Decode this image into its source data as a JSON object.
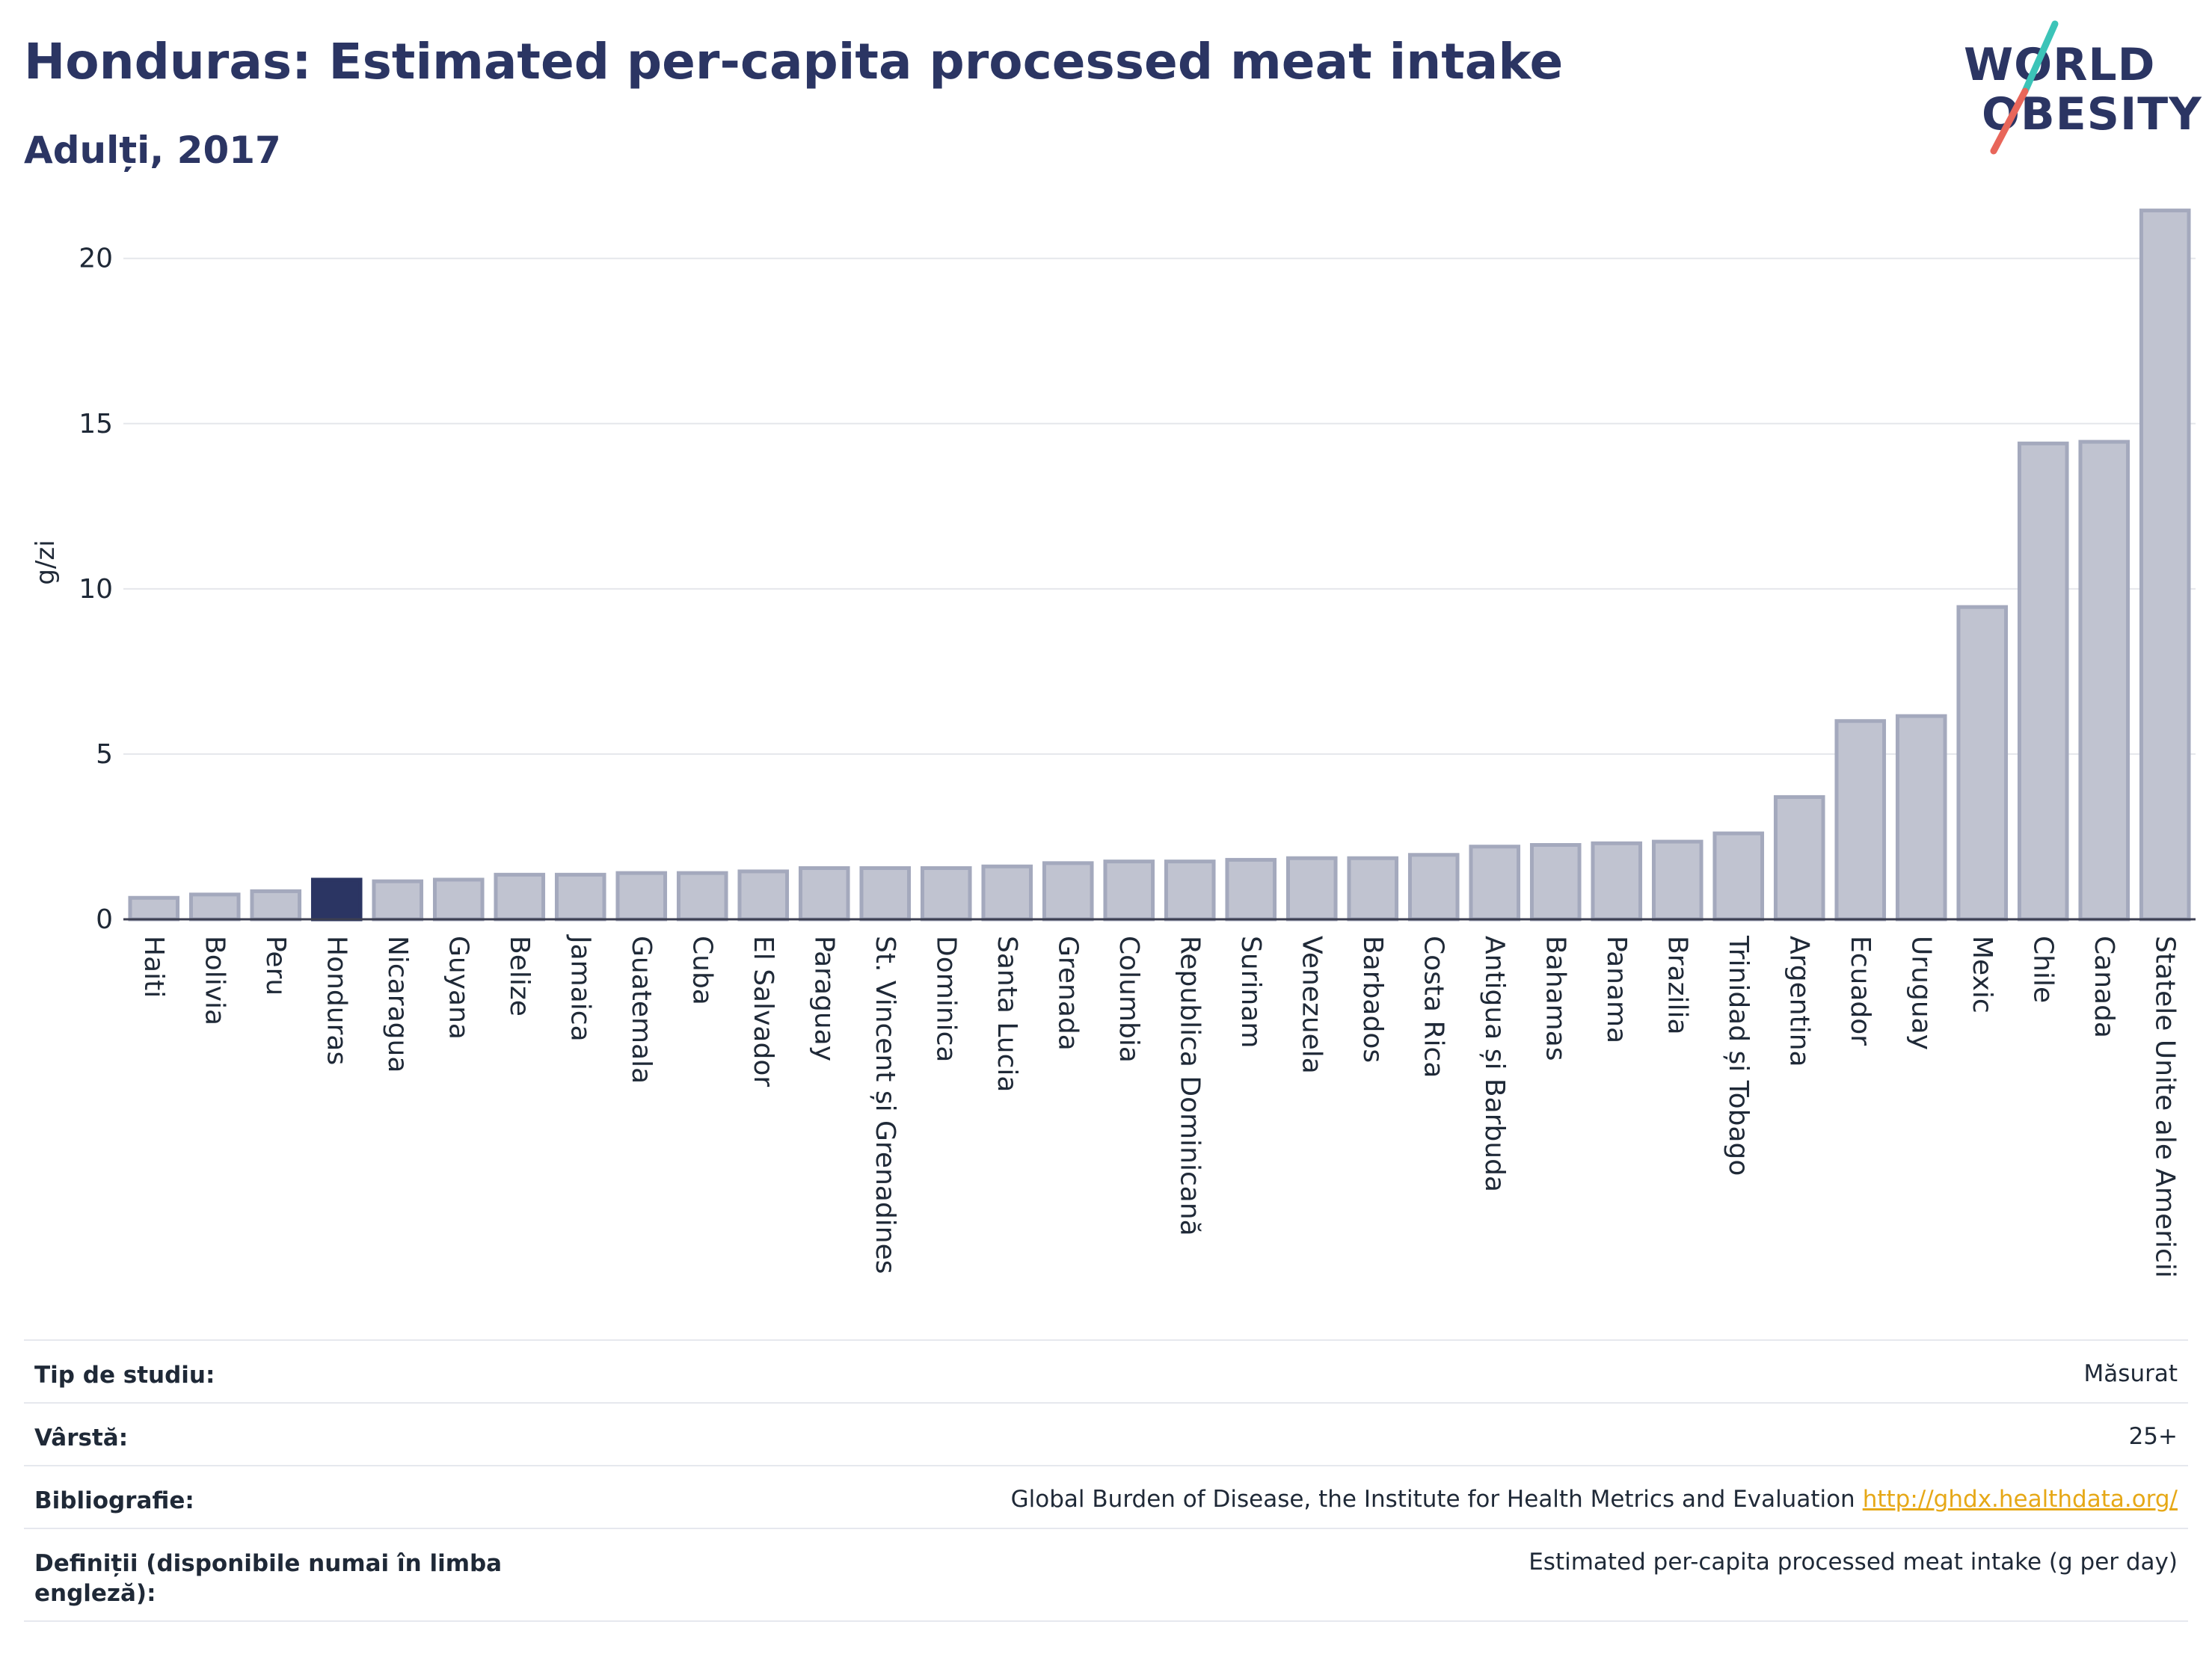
{
  "header": {
    "title": "Honduras: Estimated per-capita processed meat intake",
    "subtitle": "Adulți, 2017"
  },
  "logo": {
    "line1": "WORLD",
    "line2": "OBESITY",
    "stroke_colors": [
      "#3cc4b8",
      "#e8665a"
    ]
  },
  "chart_data": {
    "type": "bar",
    "title": "Honduras: Estimated per-capita processed meat intake",
    "subtitle": "Adulți, 2017",
    "xlabel": "",
    "ylabel": "g/zi",
    "ylim": [
      0,
      21.5
    ],
    "yticks": [
      0,
      5,
      10,
      15,
      20
    ],
    "grid": true,
    "highlight": "Honduras",
    "colors": {
      "bar": "#c0c3d0",
      "bar_edge": "#a4a9bd",
      "highlight": "#2b3563",
      "grid": "#e5e7eb",
      "axis": "#3c3f51"
    },
    "categories": [
      "Haiti",
      "Bolivia",
      "Peru",
      "Honduras",
      "Nicaragua",
      "Guyana",
      "Belize",
      "Jamaica",
      "Guatemala",
      "Cuba",
      "El Salvador",
      "Paraguay",
      "St. Vincent și Grenadines",
      "Dominica",
      "Santa Lucia",
      "Grenada",
      "Columbia",
      "Republica Dominicană",
      "Surinam",
      "Venezuela",
      "Barbados",
      "Costa Rica",
      "Antigua și Barbuda",
      "Bahamas",
      "Panama",
      "Brazilia",
      "Trinidad și Tobago",
      "Argentina",
      "Ecuador",
      "Uruguay",
      "Mexic",
      "Chile",
      "Canada",
      "Statele Unite ale Americii"
    ],
    "values": [
      0.65,
      0.75,
      0.85,
      1.2,
      1.15,
      1.2,
      1.35,
      1.35,
      1.4,
      1.4,
      1.45,
      1.55,
      1.55,
      1.55,
      1.6,
      1.7,
      1.75,
      1.75,
      1.8,
      1.85,
      1.85,
      1.95,
      2.2,
      2.25,
      2.3,
      2.35,
      2.6,
      3.7,
      6.0,
      6.15,
      9.45,
      14.4,
      14.45,
      21.45
    ]
  },
  "info": {
    "rows": [
      {
        "key": "Tip de studiu:",
        "value": "Măsurat",
        "link": ""
      },
      {
        "key": "Vârstă:",
        "value": "25+",
        "link": ""
      },
      {
        "key": "Bibliografie:",
        "value": "Global Burden of Disease, the Institute for Health Metrics and Evaluation",
        "link": "http://ghdx.healthdata.org/"
      },
      {
        "key": "Definiții (disponibile numai în limba engleză):",
        "value": "Estimated per-capita processed meat intake (g per day)",
        "link": ""
      }
    ]
  }
}
